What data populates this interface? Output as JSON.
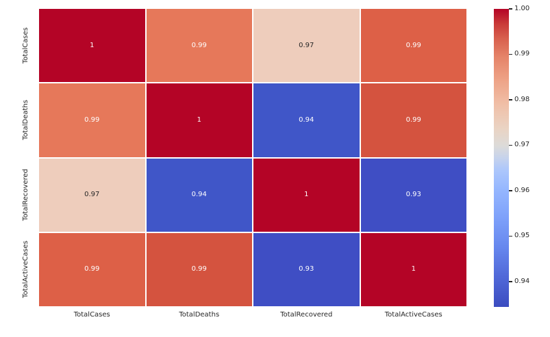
{
  "figure": {
    "background": "#ffffff",
    "text_color": "#262626",
    "grid_line_color": "#ffffff"
  },
  "chart_data": {
    "type": "heatmap",
    "x_categories": [
      "TotalCases",
      "TotalDeaths",
      "TotalRecovered",
      "TotalActiveCases"
    ],
    "y_categories": [
      "TotalCases",
      "TotalDeaths",
      "TotalRecovered",
      "TotalActiveCases"
    ],
    "values": [
      [
        1,
        0.99,
        0.97,
        0.99
      ],
      [
        0.99,
        1,
        0.94,
        0.99
      ],
      [
        0.97,
        0.94,
        1,
        0.93
      ],
      [
        0.99,
        0.99,
        0.93,
        1
      ]
    ],
    "annotations": [
      [
        "1",
        "0.99",
        "0.97",
        "0.99"
      ],
      [
        "0.99",
        "1",
        "0.94",
        "0.99"
      ],
      [
        "0.97",
        "0.94",
        "1",
        "0.93"
      ],
      [
        "0.99",
        "0.99",
        "0.93",
        "1"
      ]
    ],
    "cell_colors": [
      [
        "#b40426",
        "#e6785a",
        "#eecdbc",
        "#dd6047"
      ],
      [
        "#e6785a",
        "#b40426",
        "#4056c8",
        "#d4533f"
      ],
      [
        "#eecdbc",
        "#4056c8",
        "#b40426",
        "#3f4ec4"
      ],
      [
        "#dd6047",
        "#d4533f",
        "#3f4ec4",
        "#b40426"
      ]
    ],
    "cell_text_colors": [
      [
        "#ffffff",
        "#ffffff",
        "#262626",
        "#ffffff"
      ],
      [
        "#ffffff",
        "#ffffff",
        "#ffffff",
        "#ffffff"
      ],
      [
        "#262626",
        "#ffffff",
        "#ffffff",
        "#ffffff"
      ],
      [
        "#ffffff",
        "#ffffff",
        "#ffffff",
        "#ffffff"
      ]
    ],
    "colormap": "coolwarm",
    "legend_position": "right-colorbar",
    "colorbar": {
      "vmin": 0.9344,
      "vmax": 1.0,
      "tick_labels": [
        "1.00",
        "0.99",
        "0.98",
        "0.97",
        "0.96",
        "0.95",
        "0.94"
      ],
      "tick_values": [
        1.0,
        0.99,
        0.98,
        0.97,
        0.96,
        0.95,
        0.94
      ],
      "gradient_stops": [
        {
          "pos": 0,
          "color": "#3b4cc0"
        },
        {
          "pos": 10,
          "color": "#5068d8"
        },
        {
          "pos": 20,
          "color": "#6687ee"
        },
        {
          "pos": 30,
          "color": "#7ea1fa"
        },
        {
          "pos": 40,
          "color": "#97b8ff"
        },
        {
          "pos": 46,
          "color": "#adc7fb"
        },
        {
          "pos": 50,
          "color": "#c6d3ec"
        },
        {
          "pos": 54,
          "color": "#dcdbd9"
        },
        {
          "pos": 60,
          "color": "#ead3c3"
        },
        {
          "pos": 68,
          "color": "#f0bfa7"
        },
        {
          "pos": 76,
          "color": "#eea387"
        },
        {
          "pos": 84,
          "color": "#e58368"
        },
        {
          "pos": 90,
          "color": "#d8604e"
        },
        {
          "pos": 95,
          "color": "#c93a38"
        },
        {
          "pos": 100,
          "color": "#b40426"
        }
      ]
    }
  }
}
